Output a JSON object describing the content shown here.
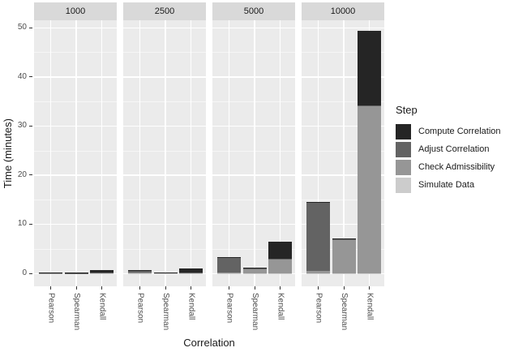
{
  "colors": {
    "panel_background": "#EBEBEB",
    "strip_background": "#D9D9D9",
    "gridline": "#FFFFFF",
    "tick_label_text": "#4D4D4D",
    "axis_title_text": "#1A1A1A",
    "step_compute": "#252525",
    "step_adjust": "#636363",
    "step_check": "#969696",
    "step_simulate": "#CCCCCC"
  },
  "chart_data": {
    "type": "bar",
    "stacked": true,
    "xlabel": "Correlation",
    "ylabel": "Time (minutes)",
    "categories": [
      "Pearson",
      "Spearman",
      "Kendall"
    ],
    "yticks": [
      0,
      10,
      20,
      30,
      40,
      50
    ],
    "yticks_minor": [
      5,
      15,
      25,
      35,
      45
    ],
    "ylim": [
      -2.6,
      51.5
    ],
    "grid": true,
    "legend": {
      "title": "Step",
      "position": "right",
      "entries": [
        {
          "label": "Compute Correlation",
          "color": "#252525"
        },
        {
          "label": "Adjust Correlation",
          "color": "#636363"
        },
        {
          "label": "Check Admissibility",
          "color": "#969696"
        },
        {
          "label": "Simulate Data",
          "color": "#CCCCCC"
        }
      ]
    },
    "steps_bottom_to_top": [
      {
        "name": "Simulate Data",
        "color": "#CCCCCC"
      },
      {
        "name": "Check Admissibility",
        "color": "#969696"
      },
      {
        "name": "Adjust Correlation",
        "color": "#636363"
      },
      {
        "name": "Compute Correlation",
        "color": "#252525"
      }
    ],
    "facets": [
      {
        "label": "1000",
        "bars": [
          {
            "category": "Pearson",
            "values_by_step": [
              0.02,
              0.05,
              0.1,
              0.03
            ],
            "total": 0.2
          },
          {
            "category": "Spearman",
            "values_by_step": [
              0.02,
              0.04,
              0.02,
              0.02
            ],
            "total": 0.1
          },
          {
            "category": "Kendall",
            "values_by_step": [
              0.02,
              0.08,
              0.05,
              0.5
            ],
            "total": 0.65
          }
        ]
      },
      {
        "label": "2500",
        "bars": [
          {
            "category": "Pearson",
            "values_by_step": [
              0.02,
              0.1,
              0.5,
              0.05
            ],
            "total": 0.67
          },
          {
            "category": "Spearman",
            "values_by_step": [
              0.02,
              0.1,
              0.03,
              0.03
            ],
            "total": 0.18
          },
          {
            "category": "Kendall",
            "values_by_step": [
              0.02,
              0.15,
              0.05,
              0.8
            ],
            "total": 1.02
          }
        ]
      },
      {
        "label": "5000",
        "bars": [
          {
            "category": "Pearson",
            "values_by_step": [
              0.03,
              0.2,
              2.9,
              0.1
            ],
            "total": 3.23
          },
          {
            "category": "Spearman",
            "values_by_step": [
              0.03,
              0.95,
              0.07,
              0.05
            ],
            "total": 1.1
          },
          {
            "category": "Kendall",
            "values_by_step": [
              0.03,
              2.9,
              0.07,
              3.5
            ],
            "total": 6.5
          }
        ]
      },
      {
        "label": "10000",
        "bars": [
          {
            "category": "Pearson",
            "values_by_step": [
              0.05,
              0.4,
              14.0,
              0.15
            ],
            "total": 14.6
          },
          {
            "category": "Spearman",
            "values_by_step": [
              0.05,
              6.8,
              0.15,
              0.1
            ],
            "total": 7.1
          },
          {
            "category": "Kendall",
            "values_by_step": [
              0.05,
              33.9,
              0.15,
              15.2
            ],
            "total": 49.3
          }
        ]
      }
    ]
  }
}
